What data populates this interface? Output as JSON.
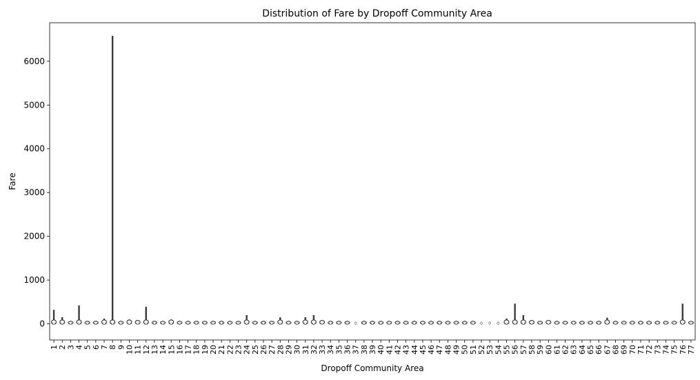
{
  "chart_data": {
    "type": "violin",
    "title": "Distribution of Fare by Dropoff Community Area",
    "xlabel": "Dropoff Community Area",
    "ylabel": "Fare",
    "ylim": [
      -370,
      6880
    ],
    "yticks": [
      0,
      1000,
      2000,
      3000,
      4000,
      5000,
      6000
    ],
    "grid": false,
    "categories": [
      "1",
      "2",
      "3",
      "4",
      "5",
      "6",
      "7",
      "8",
      "9",
      "10",
      "11",
      "12",
      "13",
      "14",
      "15",
      "16",
      "17",
      "18",
      "19",
      "20",
      "21",
      "22",
      "23",
      "24",
      "25",
      "26",
      "27",
      "28",
      "29",
      "30",
      "31",
      "32",
      "33",
      "34",
      "35",
      "36",
      "37",
      "38",
      "39",
      "40",
      "41",
      "42",
      "43",
      "44",
      "45",
      "46",
      "47",
      "48",
      "49",
      "50",
      "51",
      "52",
      "53",
      "54",
      "55",
      "56",
      "57",
      "58",
      "59",
      "60",
      "61",
      "62",
      "63",
      "64",
      "65",
      "66",
      "67",
      "68",
      "69",
      "70",
      "71",
      "72",
      "73",
      "74",
      "75",
      "76",
      "77"
    ],
    "max_values": [
      320,
      150,
      60,
      420,
      60,
      60,
      120,
      6580,
      60,
      100,
      80,
      390,
      60,
      60,
      100,
      60,
      60,
      60,
      60,
      60,
      60,
      60,
      60,
      200,
      60,
      60,
      60,
      150,
      60,
      60,
      150,
      200,
      80,
      60,
      60,
      60,
      40,
      60,
      60,
      60,
      60,
      60,
      60,
      60,
      60,
      60,
      60,
      60,
      60,
      60,
      60,
      40,
      40,
      40,
      120,
      460,
      200,
      80,
      60,
      80,
      60,
      60,
      60,
      60,
      60,
      60,
      140,
      60,
      60,
      60,
      60,
      60,
      60,
      60,
      60,
      460,
      60
    ]
  }
}
